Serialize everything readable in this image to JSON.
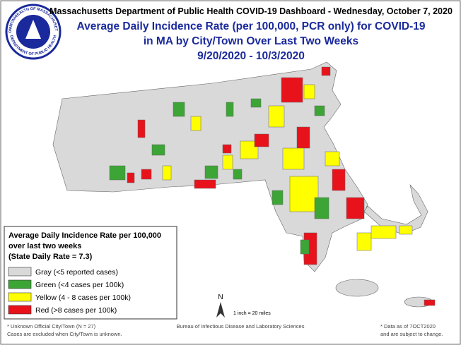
{
  "header": {
    "title": "Massachusetts Department of Public Health COVID-19 Dashboard - Wednesday, October 7, 2020",
    "seal": {
      "top": "COMMONWEALTH OF MASSACHUSETTS",
      "bottom": "DEPARTMENT OF PUBLIC HEALTH"
    }
  },
  "map_title": [
    "Average Daily Incidence Rate (per 100,000, PCR only) for COVID-19",
    "in MA by City/Town Over Last Two Weeks",
    "9/20/2020 - 10/3/2020"
  ],
  "legend": {
    "title": [
      "Average Daily Incidence Rate per 100,000",
      "over last two weeks",
      "(State Daily Rate = 7.3)"
    ],
    "items": [
      {
        "label": "Gray (<5 reported cases)",
        "color": "#d9d9d9"
      },
      {
        "label": "Green (<4 cases per 100k)",
        "color": "#3ca535"
      },
      {
        "label": "Yellow (4 - 8 cases per 100k)",
        "color": "#ffff00"
      },
      {
        "label": "Red (>8 cases per 100k)",
        "color": "#e8121b"
      }
    ]
  },
  "north": "N",
  "scale": "1 inch = 20 miles",
  "footer": {
    "left": [
      "* Unknown Official City/Town (N = 27)",
      "Cases are excluded when City/Town is unknown."
    ],
    "center": "Bureau of Infectious Disease and Laboratory Sciences",
    "right": [
      "* Data as of 7OCT2020",
      "and are subject to change."
    ]
  }
}
